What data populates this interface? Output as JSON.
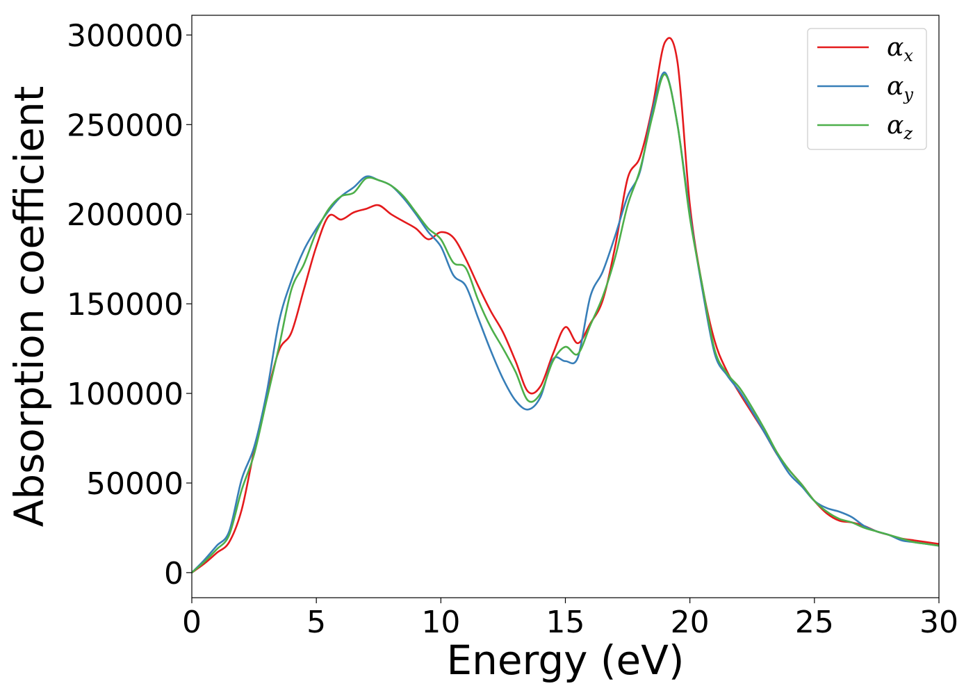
{
  "chart_data": {
    "type": "line",
    "title": "",
    "xlabel": "Energy (eV)",
    "ylabel": "Absorption coefficient",
    "xlim": [
      0,
      30
    ],
    "ylim": [
      -14000,
      311000
    ],
    "xticks": [
      0,
      5,
      10,
      15,
      20,
      25,
      30
    ],
    "yticks": [
      0,
      50000,
      100000,
      150000,
      200000,
      250000,
      300000
    ],
    "xtick_labels": [
      "0",
      "5",
      "10",
      "15",
      "20",
      "25",
      "30"
    ],
    "ytick_labels": [
      "0",
      "50000",
      "100000",
      "150000",
      "200000",
      "250000",
      "300000"
    ],
    "grid": false,
    "legend_position": "top-right",
    "series": [
      {
        "name": "αx",
        "symbol": "α",
        "subscript": "x",
        "color": "#e41a1c",
        "x": [
          0,
          0.5,
          1,
          1.5,
          2,
          2.5,
          3,
          3.5,
          4,
          4.5,
          5,
          5.5,
          6,
          6.5,
          7,
          7.5,
          8,
          8.5,
          9,
          9.5,
          10,
          10.5,
          11,
          11.5,
          12,
          12.5,
          13,
          13.5,
          14,
          14.5,
          15,
          15.5,
          16,
          16.5,
          17,
          17.5,
          18,
          18.5,
          19,
          19.5,
          20,
          20.5,
          21,
          21.5,
          22,
          22.5,
          23,
          23.5,
          24,
          24.5,
          25,
          25.5,
          26,
          26.5,
          27,
          27.5,
          28,
          28.5,
          29,
          29.5,
          30
        ],
        "y": [
          0,
          5000,
          11000,
          17000,
          35000,
          68000,
          98000,
          124000,
          134000,
          158000,
          182000,
          199000,
          197000,
          201000,
          203000,
          205000,
          200000,
          196000,
          192000,
          186000,
          190000,
          187000,
          175000,
          160000,
          146000,
          134000,
          118000,
          101000,
          104000,
          122000,
          137000,
          128000,
          139000,
          152000,
          182000,
          220000,
          232000,
          260000,
          296000,
          285000,
          205000,
          160000,
          129000,
          112000,
          100000,
          89000,
          78000,
          66000,
          57000,
          49000,
          40000,
          33000,
          29000,
          28000,
          26000,
          23000,
          21000,
          19000,
          18000,
          17000,
          16000
        ]
      },
      {
        "name": "αy",
        "symbol": "α",
        "subscript": "y",
        "color": "#377eb8",
        "x": [
          0,
          0.5,
          1,
          1.5,
          2,
          2.5,
          3,
          3.5,
          4,
          4.5,
          5,
          5.5,
          6,
          6.5,
          7,
          7.5,
          8,
          8.5,
          9,
          9.5,
          10,
          10.5,
          11,
          11.5,
          12,
          12.5,
          13,
          13.5,
          14,
          14.5,
          15,
          15.5,
          16,
          16.5,
          17,
          17.5,
          18,
          18.5,
          19,
          19.5,
          20,
          20.5,
          21,
          21.5,
          22,
          22.5,
          23,
          23.5,
          24,
          24.5,
          25,
          25.5,
          26,
          26.5,
          27,
          27.5,
          28,
          28.5,
          29,
          29.5,
          30
        ],
        "y": [
          0,
          7000,
          15000,
          23000,
          52000,
          70000,
          100000,
          140000,
          163000,
          180000,
          192000,
          202000,
          210000,
          215000,
          221000,
          219000,
          216000,
          209000,
          200000,
          190000,
          182000,
          166000,
          160000,
          142000,
          124000,
          108000,
          96000,
          91000,
          98000,
          119000,
          118000,
          120000,
          154000,
          168000,
          188000,
          210000,
          224000,
          258000,
          279000,
          250000,
          200000,
          158000,
          122000,
          110000,
          101000,
          90000,
          78000,
          66000,
          55000,
          48000,
          40000,
          36000,
          34000,
          31000,
          26000,
          23000,
          21000,
          18000,
          17000,
          16000,
          15000
        ]
      },
      {
        "name": "αz",
        "symbol": "α",
        "subscript": "z",
        "color": "#4daf4a",
        "x": [
          0,
          0.5,
          1,
          1.5,
          2,
          2.5,
          3,
          3.5,
          4,
          4.5,
          5,
          5.5,
          6,
          6.5,
          7,
          7.5,
          8,
          8.5,
          9,
          9.5,
          10,
          10.5,
          11,
          11.5,
          12,
          12.5,
          13,
          13.5,
          14,
          14.5,
          15,
          15.5,
          16,
          16.5,
          17,
          17.5,
          18,
          18.5,
          19,
          19.5,
          20,
          20.5,
          21,
          21.5,
          22,
          22.5,
          23,
          23.5,
          24,
          24.5,
          25,
          25.5,
          26,
          26.5,
          27,
          27.5,
          28,
          28.5,
          29,
          29.5,
          30
        ],
        "y": [
          0,
          6000,
          13000,
          21000,
          46000,
          66000,
          96000,
          126000,
          158000,
          172000,
          190000,
          203000,
          210000,
          212000,
          220000,
          219000,
          216000,
          210000,
          201000,
          192000,
          186000,
          173000,
          170000,
          152000,
          137000,
          125000,
          112000,
          96000,
          100000,
          118000,
          126000,
          122000,
          138000,
          154000,
          176000,
          205000,
          225000,
          255000,
          278000,
          250000,
          198000,
          160000,
          124000,
          111000,
          103000,
          92000,
          80000,
          67000,
          57000,
          49000,
          40000,
          34000,
          30000,
          28000,
          25000,
          23000,
          21000,
          19000,
          17000,
          16000,
          15000
        ]
      }
    ]
  }
}
